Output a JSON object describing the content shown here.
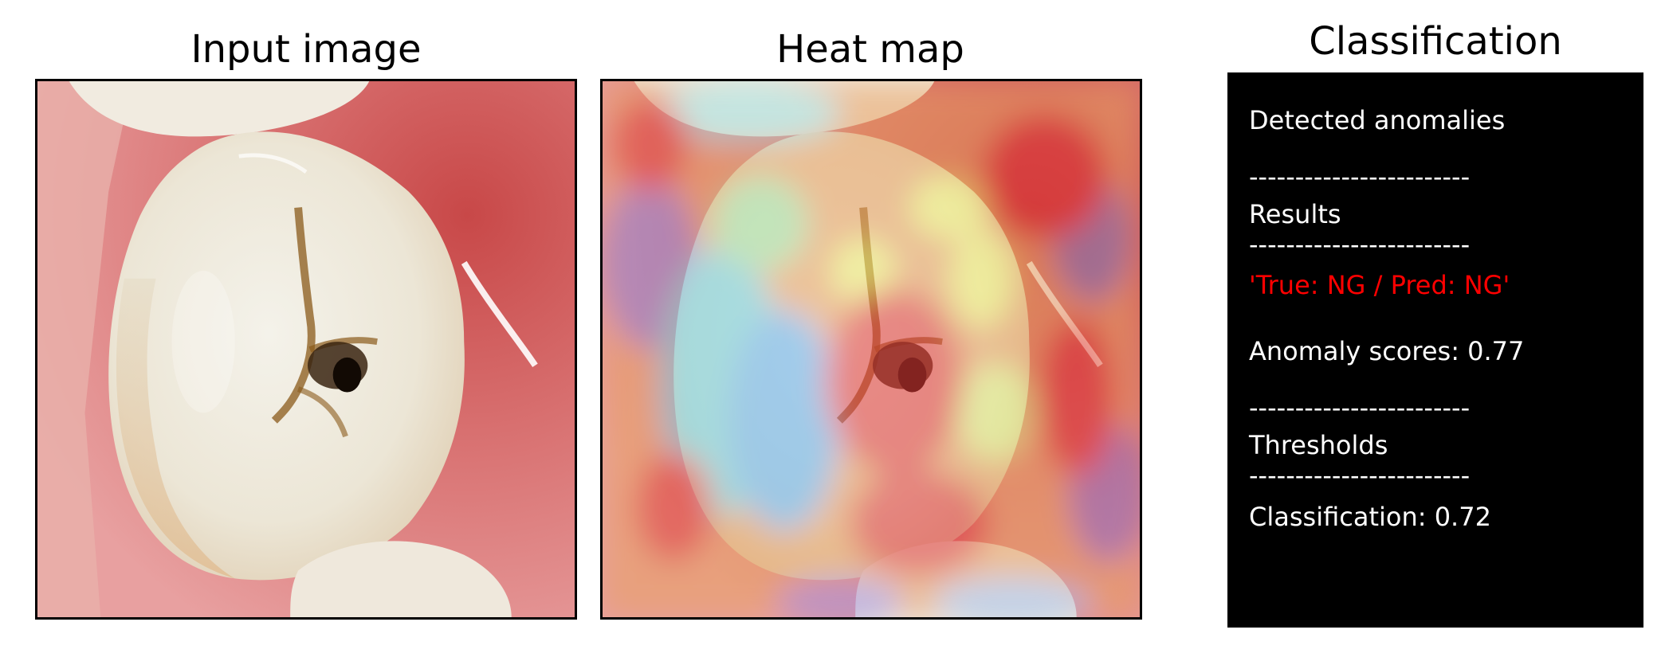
{
  "panels": {
    "input": {
      "title": "Input image"
    },
    "heatmap": {
      "title": "Heat map"
    },
    "classification": {
      "title": "Classification"
    }
  },
  "classification_panel": {
    "lines": [
      "Detected anomalies",
      "------------------------",
      "Results",
      "------------------------",
      "'True: NG / Pred: NG'",
      "Anomaly scores: 0.77",
      "------------------------",
      "Thresholds",
      "------------------------",
      "Classification: 0.72"
    ],
    "highlight_color": "#ff0000",
    "text_color": "#ffffff",
    "background_color": "#000000"
  },
  "icons": {
    "input_image": "tooth-photo",
    "heatmap_image": "tooth-heatmap-overlay"
  }
}
